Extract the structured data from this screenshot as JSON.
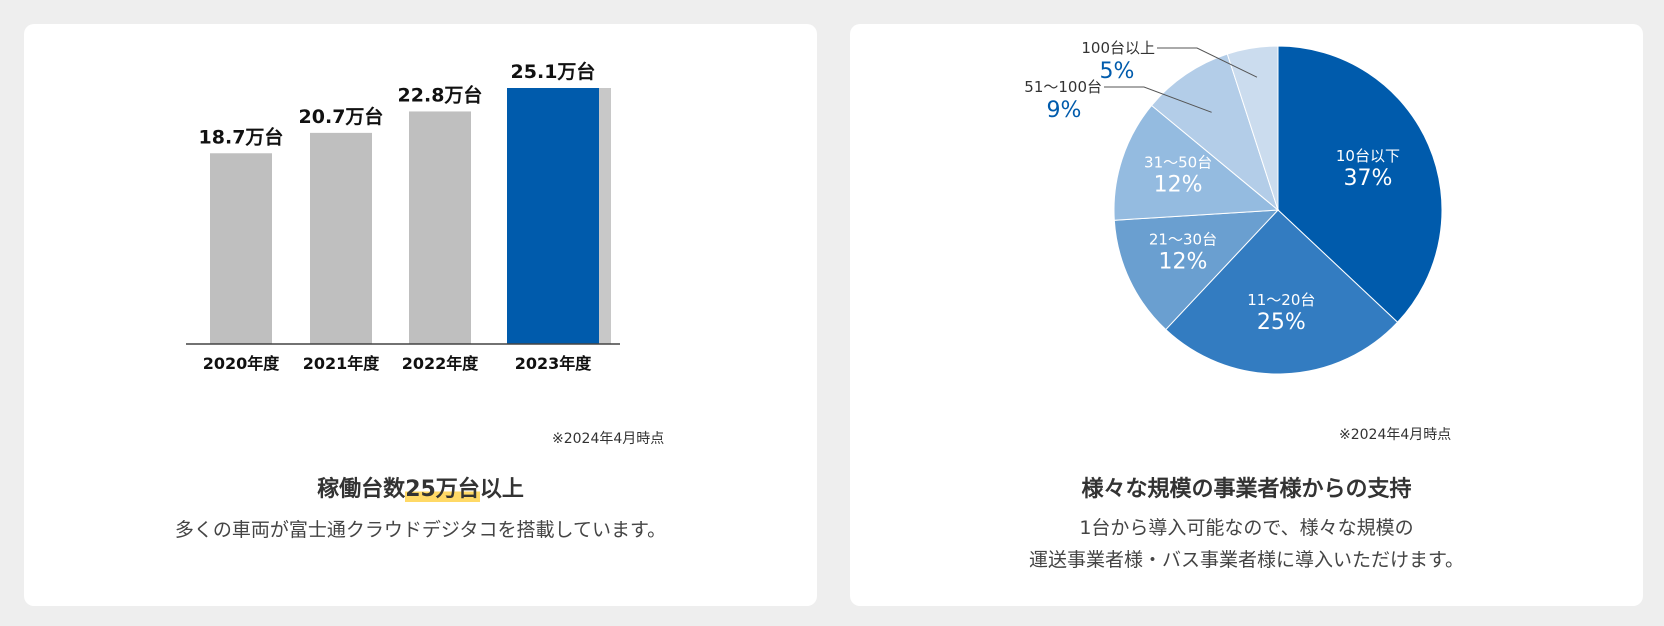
{
  "chart_data": [
    {
      "type": "bar",
      "categories": [
        "2020年度",
        "2021年度",
        "2022年度",
        "2023年度"
      ],
      "values": [
        18.7,
        20.7,
        22.8,
        25.1
      ],
      "value_labels": [
        "18.7万台",
        "20.7万台",
        "22.8万台",
        "25.1万台"
      ],
      "highlight_index": 3,
      "colors": {
        "default": "#bfbfbf",
        "highlight": "#005bac",
        "shadow": "#c8c8c8"
      },
      "ylim": [
        0,
        25.1
      ],
      "grid": false,
      "note": "※2024年4月時点"
    },
    {
      "type": "pie",
      "slices": [
        {
          "label": "10台以下",
          "value": 37,
          "pct": "37%",
          "color": "#005bac"
        },
        {
          "label": "11〜20台",
          "value": 25,
          "pct": "25%",
          "color": "#337cc1"
        },
        {
          "label": "21〜30台",
          "value": 12,
          "pct": "12%",
          "color": "#6a9fd0"
        },
        {
          "label": "31〜50台",
          "value": 12,
          "pct": "12%",
          "color": "#94bbe0"
        },
        {
          "label": "51〜100台",
          "value": 9,
          "pct": "9%",
          "color": "#b3cde8"
        },
        {
          "label": "100台以上",
          "value": 5,
          "pct": "5%",
          "color": "#cbdcee"
        }
      ],
      "note": "※2024年4月時点"
    }
  ],
  "left_card": {
    "title_prefix": "稼働台数",
    "title_highlight": "25万台",
    "title_suffix": "以上",
    "description": "多くの車両が富士通クラウドデジタコを搭載しています。"
  },
  "right_card": {
    "title": "様々な規模の事業者様からの支持",
    "description_line1": "1台から導入可能なので、様々な規模の",
    "description_line2": "運送事業者様・バス事業者様に導入いただけます。"
  }
}
